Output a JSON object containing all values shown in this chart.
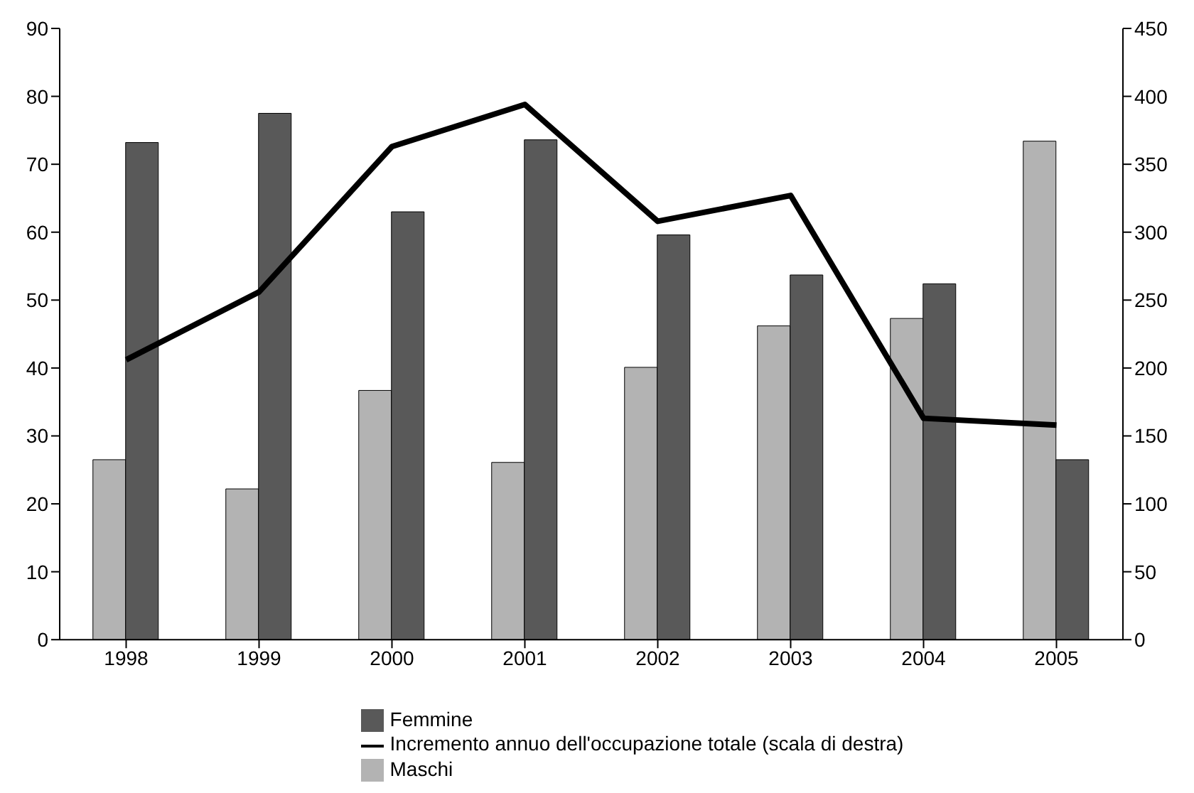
{
  "chart_data": {
    "type": "bar",
    "categories": [
      "1998",
      "1999",
      "2000",
      "2001",
      "2002",
      "2003",
      "2004",
      "2005"
    ],
    "series": [
      {
        "name": "Maschi",
        "color": "#b3b3b3",
        "values": [
          26.5,
          22.2,
          36.7,
          26.1,
          40.1,
          46.2,
          47.3,
          73.4
        ]
      },
      {
        "name": "Femmine",
        "color": "#595959",
        "values": [
          73.2,
          77.5,
          63.0,
          73.6,
          59.6,
          53.7,
          52.4,
          26.5
        ]
      },
      {
        "name": "Incremento annuo dell'occupazione totale (scala di destra)",
        "type": "line",
        "axis": "y2",
        "color": "#000000",
        "values": [
          206,
          256,
          363,
          394,
          308,
          327,
          163,
          158
        ]
      }
    ],
    "ylim": [
      0,
      90
    ],
    "yticks": [
      0,
      10,
      20,
      30,
      40,
      50,
      60,
      70,
      80,
      90
    ],
    "y2lim": [
      0,
      450
    ],
    "y2ticks": [
      0,
      50,
      100,
      150,
      200,
      250,
      300,
      350,
      400,
      450
    ],
    "grid": false,
    "legend": "bottom",
    "marker": "none"
  }
}
